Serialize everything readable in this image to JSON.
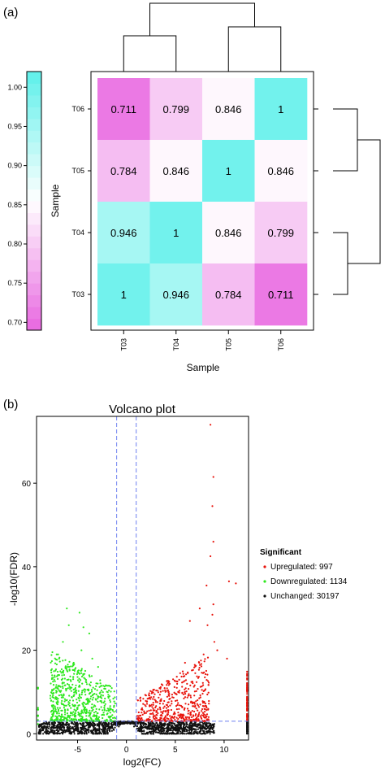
{
  "panel_a": {
    "label": "(a)"
  },
  "panel_b": {
    "label": "(b)"
  },
  "chart_data": [
    {
      "type": "heatmap",
      "panel": "(a)",
      "xlabel": "Sample",
      "ylabel": "Sample",
      "x_categories": [
        "T03",
        "T04",
        "T05",
        "T06"
      ],
      "y_categories": [
        "T06",
        "T05",
        "T04",
        "T03"
      ],
      "matrix": [
        [
          0.711,
          0.799,
          0.846,
          1
        ],
        [
          0.784,
          0.846,
          1,
          0.846
        ],
        [
          0.946,
          1,
          0.846,
          0.799
        ],
        [
          1,
          0.946,
          0.784,
          0.711
        ]
      ],
      "cell_labels": [
        [
          "0.711",
          "0.799",
          "0.846",
          "1"
        ],
        [
          "0.784",
          "0.846",
          "1",
          "0.846"
        ],
        [
          "0.946",
          "1",
          "0.846",
          "0.799"
        ],
        [
          "1",
          "0.946",
          "0.784",
          "0.711"
        ]
      ],
      "colorbar": {
        "range": [
          0.69,
          1.02
        ],
        "ticks": [
          "0.70",
          "0.75",
          "0.80",
          "0.85",
          "0.90",
          "0.95",
          "1.00"
        ],
        "low_color": "#e866e0",
        "mid_color": "#ffffff",
        "high_color": "#5ef0ea"
      },
      "dendrogram": {
        "top": "((T03,T04),(T05,T06))",
        "right": "((T06,T05),(T04,T03))"
      }
    },
    {
      "type": "scatter",
      "panel": "(b)",
      "title": "Volcano plot",
      "xlabel": "log2(FC)",
      "ylabel": "-log10(FDR)",
      "xlim": [
        -9.2,
        12.5
      ],
      "ylim": [
        -1.5,
        76
      ],
      "xticks": [
        "-5",
        "0",
        "5",
        "10"
      ],
      "yticks": [
        "0",
        "20",
        "40",
        "60"
      ],
      "thresholds": {
        "log2fc": [
          -1,
          1
        ],
        "neg_log10_fdr": 3
      },
      "legend": {
        "title": "Significant",
        "placement": "right",
        "items": [
          {
            "label": "Upregulated: 997",
            "color": "#e8140c"
          },
          {
            "label": "Downregulated: 1134",
            "color": "#2ee81e"
          },
          {
            "label": "Unchanged: 30197",
            "color": "#111111"
          }
        ]
      },
      "series": [
        {
          "name": "Upregulated",
          "color": "#e8140c",
          "count": 997,
          "highlight_points": [
            [
              8.6,
              74
            ],
            [
              8.9,
              61.5
            ],
            [
              8.8,
              54.5
            ],
            [
              8.9,
              46
            ],
            [
              8.6,
              42.5
            ],
            [
              10.5,
              36.5
            ],
            [
              11.2,
              36
            ],
            [
              8.2,
              35.5
            ],
            [
              8.9,
              31
            ],
            [
              7.5,
              30
            ],
            [
              8.8,
              28.5
            ],
            [
              6.5,
              27
            ],
            [
              8.3,
              26
            ],
            [
              9,
              22
            ],
            [
              7.9,
              19
            ],
            [
              9.3,
              20
            ],
            [
              10.3,
              18
            ],
            [
              7,
              16.5
            ],
            [
              6,
              17
            ],
            [
              5.5,
              14.5
            ]
          ]
        },
        {
          "name": "Downregulated",
          "color": "#2ee81e",
          "count": 1134,
          "highlight_points": [
            [
              -6.1,
              30
            ],
            [
              -4.8,
              29
            ],
            [
              -5.9,
              26
            ],
            [
              -4.4,
              25.5
            ],
            [
              -3.8,
              24
            ],
            [
              -6.5,
              22
            ],
            [
              -4.6,
              20
            ],
            [
              -7,
              19
            ],
            [
              -3.5,
              18
            ],
            [
              -5.4,
              17
            ],
            [
              -2.9,
              16
            ],
            [
              -7.6,
              14
            ]
          ]
        },
        {
          "name": "Unchanged",
          "color": "#111111",
          "count": 30197
        }
      ]
    }
  ]
}
